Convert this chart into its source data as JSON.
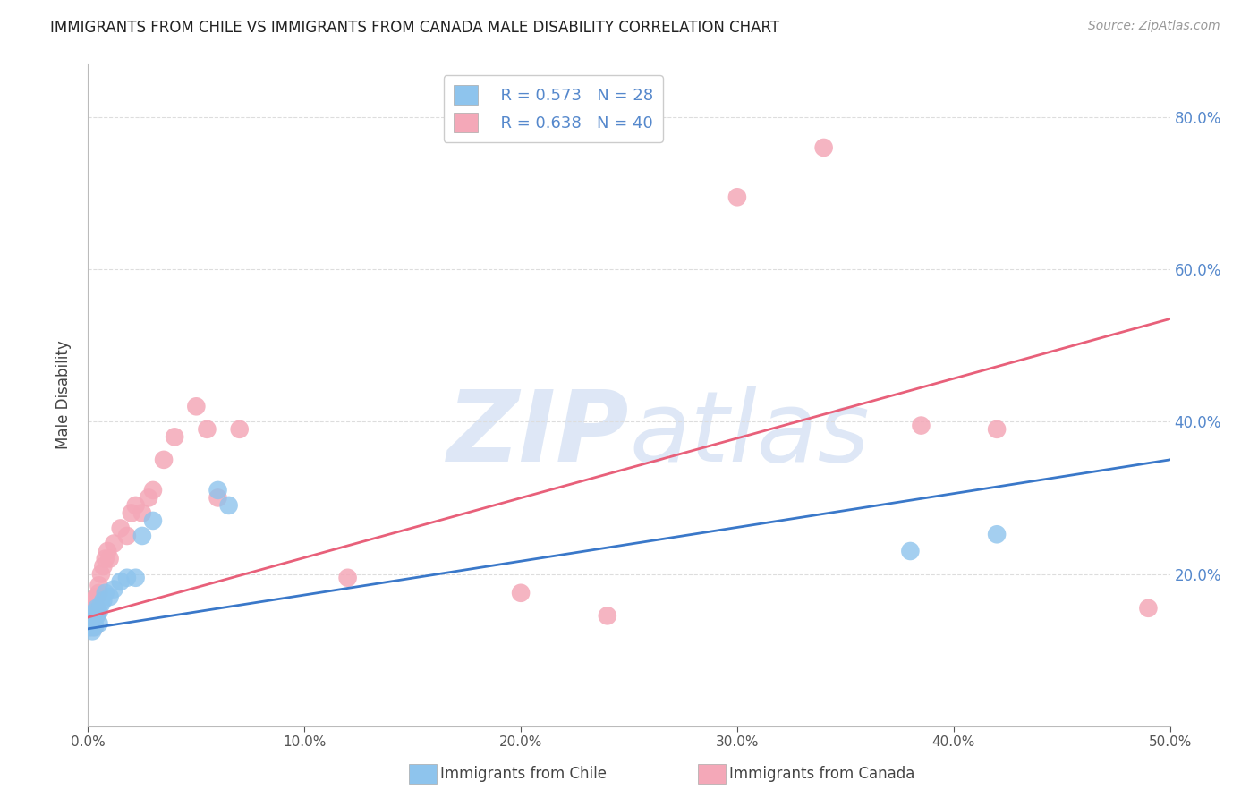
{
  "title": "IMMIGRANTS FROM CHILE VS IMMIGRANTS FROM CANADA MALE DISABILITY CORRELATION CHART",
  "source": "Source: ZipAtlas.com",
  "ylabel": "Male Disability",
  "xlim": [
    0.0,
    0.5
  ],
  "ylim": [
    0.0,
    0.87
  ],
  "yticks": [
    0.0,
    0.2,
    0.4,
    0.6,
    0.8
  ],
  "legend_r_chile": "R = 0.573",
  "legend_n_chile": "N = 28",
  "legend_r_canada": "R = 0.638",
  "legend_n_canada": "N = 40",
  "chile_color": "#8EC4ED",
  "canada_color": "#F4A8B8",
  "chile_line_color": "#3A78C9",
  "canada_line_color": "#E8607A",
  "chile_x": [
    0.001,
    0.001,
    0.001,
    0.002,
    0.002,
    0.002,
    0.002,
    0.003,
    0.003,
    0.003,
    0.004,
    0.004,
    0.005,
    0.005,
    0.006,
    0.007,
    0.008,
    0.01,
    0.012,
    0.015,
    0.018,
    0.022,
    0.025,
    0.03,
    0.06,
    0.065,
    0.38,
    0.42
  ],
  "chile_y": [
    0.13,
    0.135,
    0.14,
    0.125,
    0.13,
    0.14,
    0.145,
    0.13,
    0.135,
    0.15,
    0.145,
    0.155,
    0.135,
    0.15,
    0.16,
    0.165,
    0.175,
    0.17,
    0.18,
    0.19,
    0.195,
    0.195,
    0.25,
    0.27,
    0.31,
    0.29,
    0.23,
    0.252
  ],
  "canada_x": [
    0.001,
    0.001,
    0.001,
    0.002,
    0.002,
    0.002,
    0.003,
    0.003,
    0.003,
    0.004,
    0.004,
    0.005,
    0.005,
    0.006,
    0.007,
    0.008,
    0.009,
    0.01,
    0.012,
    0.015,
    0.018,
    0.02,
    0.022,
    0.025,
    0.028,
    0.03,
    0.035,
    0.04,
    0.05,
    0.055,
    0.06,
    0.07,
    0.12,
    0.2,
    0.24,
    0.3,
    0.34,
    0.385,
    0.42,
    0.49
  ],
  "canada_y": [
    0.13,
    0.14,
    0.15,
    0.145,
    0.155,
    0.165,
    0.13,
    0.15,
    0.165,
    0.155,
    0.17,
    0.175,
    0.185,
    0.2,
    0.21,
    0.22,
    0.23,
    0.22,
    0.24,
    0.26,
    0.25,
    0.28,
    0.29,
    0.28,
    0.3,
    0.31,
    0.35,
    0.38,
    0.42,
    0.39,
    0.3,
    0.39,
    0.195,
    0.175,
    0.145,
    0.695,
    0.76,
    0.395,
    0.39,
    0.155
  ],
  "chile_line_x0": 0.0,
  "chile_line_y0": 0.128,
  "chile_line_x1": 0.5,
  "chile_line_y1": 0.35,
  "canada_line_x0": 0.0,
  "canada_line_y0": 0.143,
  "canada_line_x1": 0.5,
  "canada_line_y1": 0.535,
  "watermark_zip": "ZIP",
  "watermark_atlas": "atlas",
  "watermark_color": "#C8D8F0",
  "background_color": "#FFFFFF",
  "grid_color": "#DDDDDD",
  "grid_style": "--"
}
